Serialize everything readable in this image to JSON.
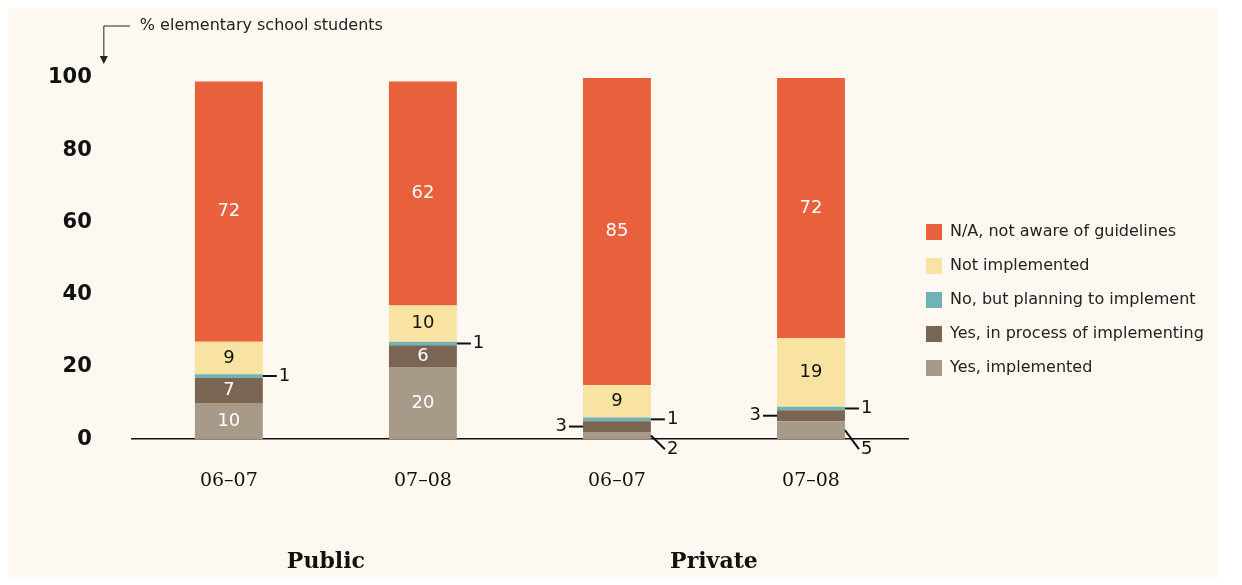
{
  "chart_data": {
    "type": "bar",
    "stacked": true,
    "ylabel": "% elementary school students",
    "categories": [
      "06–07",
      "07–08",
      "06–07",
      "07–08"
    ],
    "series": [
      {
        "name": "Yes, implemented",
        "color": "#a89a88",
        "values": [
          10,
          20,
          2,
          5
        ]
      },
      {
        "name": "Yes, in process of implementing",
        "color": "#7a6552",
        "values": [
          7,
          6,
          3,
          3
        ]
      },
      {
        "name": "No, but planning to implement",
        "color": "#6fb3b8",
        "values": [
          1,
          1,
          1,
          1
        ]
      },
      {
        "name": "Not implemented",
        "color": "#f9e3a3",
        "values": [
          9,
          10,
          9,
          19
        ]
      },
      {
        "name": "N/A, not aware of guidelines",
        "color": "#e8603c",
        "values": [
          72,
          62,
          85,
          72
        ]
      }
    ],
    "ylim": [
      0,
      100
    ],
    "yticks": [
      0,
      20,
      40,
      60,
      80,
      100
    ],
    "grid": false,
    "legend": "right",
    "data_labels": true,
    "annotations": [
      "Public",
      "Private"
    ]
  }
}
